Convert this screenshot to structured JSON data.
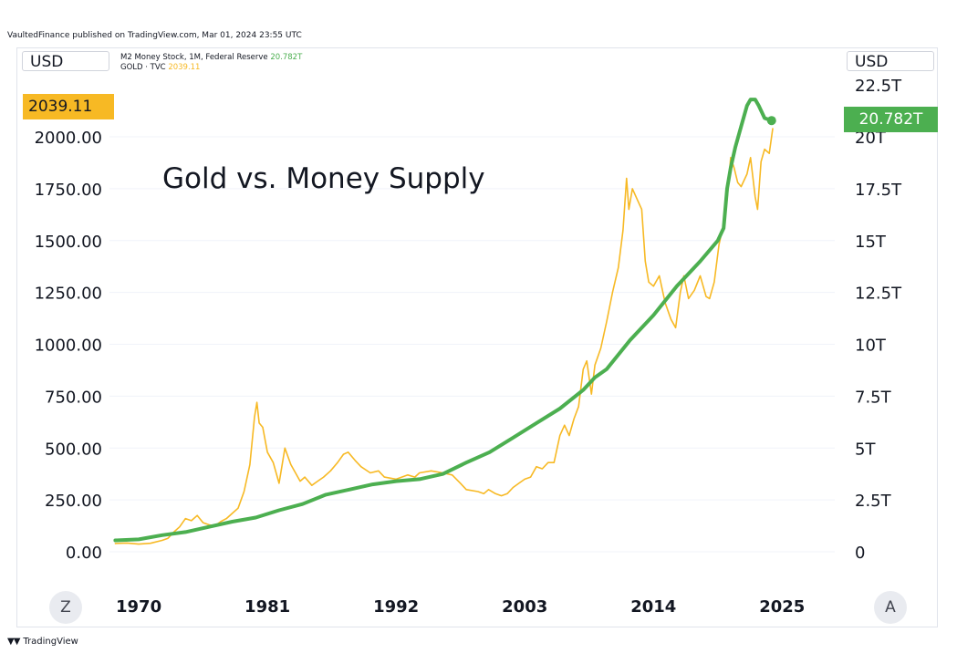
{
  "header": {
    "published": "VaultedFinance published on TradingView.com, Mar 01, 2024 23:55 UTC"
  },
  "left_scale": {
    "currency": "USD"
  },
  "right_scale": {
    "currency": "USD"
  },
  "legend": {
    "m2_label": "M2 Money Stock, 1M, Federal Reserve",
    "m2_value": "20.782T",
    "gold_label": "GOLD · TVC",
    "gold_value": "2039.11"
  },
  "badges": {
    "gold": "2039.11",
    "m2": "20.782T"
  },
  "buttons": {
    "zoom": "Z",
    "auto": "A"
  },
  "footer": {
    "brand": "TradingView"
  },
  "colors": {
    "gold": "#f7b924",
    "m2": "#4caf50",
    "grid": "#f0f3fa"
  },
  "chart_data": {
    "type": "line",
    "annotation": "Gold vs. Money Supply",
    "x_ticks": [
      "1970",
      "1981",
      "1992",
      "2003",
      "2014",
      "2025"
    ],
    "xlim": [
      1967.5,
      2029.5
    ],
    "left_axis": {
      "ticks": [
        "0.00",
        "250.00",
        "500.00",
        "750.00",
        "1000.00",
        "1250.00",
        "1500.00",
        "1750.00",
        "2000.00"
      ],
      "tick_values": [
        0,
        250,
        500,
        750,
        1000,
        1250,
        1500,
        1750,
        2000
      ],
      "ylim": [
        -125,
        2200
      ]
    },
    "right_axis": {
      "ticks": [
        "0",
        "2.5T",
        "5T",
        "7.5T",
        "10T",
        "12.5T",
        "15T",
        "17.5T",
        "20T",
        "22.5T"
      ],
      "tick_values": [
        0,
        2.5,
        5,
        7.5,
        10,
        12.5,
        15,
        17.5,
        20,
        22.5
      ],
      "ylim": [
        -1.25,
        22.5
      ]
    },
    "series": [
      {
        "name": "GOLD · TVC",
        "axis": "left",
        "x": [
          1968.0,
          1969.0,
          1970.0,
          1971.0,
          1972.0,
          1972.5,
          1973.0,
          1973.5,
          1974.0,
          1974.5,
          1975.0,
          1975.5,
          1976.0,
          1976.5,
          1977.0,
          1977.5,
          1978.0,
          1978.5,
          1979.0,
          1979.5,
          1979.9,
          1980.1,
          1980.3,
          1980.6,
          1981.0,
          1981.5,
          1982.0,
          1982.5,
          1983.0,
          1983.4,
          1983.8,
          1984.2,
          1984.8,
          1985.3,
          1985.8,
          1986.4,
          1987.0,
          1987.5,
          1987.9,
          1988.5,
          1989.0,
          1989.8,
          1990.5,
          1991.0,
          1992.0,
          1993.0,
          1993.6,
          1994.0,
          1995.0,
          1996.0,
          1996.8,
          1997.5,
          1998.0,
          1999.0,
          1999.5,
          1999.9,
          2000.5,
          2001.0,
          2001.5,
          2002.0,
          2002.5,
          2003.0,
          2003.5,
          2004.0,
          2004.5,
          2005.0,
          2005.5,
          2006.0,
          2006.4,
          2006.8,
          2007.2,
          2007.6,
          2008.0,
          2008.3,
          2008.7,
          2009.0,
          2009.5,
          2010.0,
          2010.5,
          2011.0,
          2011.4,
          2011.7,
          2011.9,
          2012.2,
          2012.6,
          2013.0,
          2013.3,
          2013.6,
          2014.0,
          2014.5,
          2015.0,
          2015.5,
          2015.9,
          2016.3,
          2016.6,
          2017.0,
          2017.5,
          2018.0,
          2018.5,
          2018.8,
          2019.2,
          2019.6,
          2020.0,
          2020.3,
          2020.6,
          2020.9,
          2021.2,
          2021.5,
          2022.0,
          2022.3,
          2022.7,
          2022.9,
          2023.2,
          2023.5,
          2023.9,
          2024.2
        ],
        "y": [
          40,
          42,
          37,
          41,
          55,
          65,
          95,
          120,
          160,
          150,
          175,
          140,
          130,
          125,
          145,
          160,
          185,
          210,
          290,
          420,
          650,
          720,
          620,
          600,
          480,
          430,
          330,
          500,
          420,
          380,
          340,
          360,
          320,
          340,
          360,
          390,
          430,
          470,
          480,
          440,
          410,
          380,
          390,
          360,
          350,
          370,
          360,
          380,
          390,
          380,
          370,
          330,
          300,
          290,
          280,
          300,
          280,
          270,
          280,
          310,
          330,
          350,
          360,
          410,
          400,
          430,
          430,
          560,
          610,
          560,
          640,
          700,
          880,
          920,
          760,
          900,
          980,
          1110,
          1250,
          1370,
          1550,
          1800,
          1650,
          1750,
          1700,
          1650,
          1400,
          1300,
          1280,
          1330,
          1200,
          1120,
          1080,
          1250,
          1330,
          1220,
          1260,
          1330,
          1230,
          1220,
          1300,
          1480,
          1580,
          1700,
          1900,
          1850,
          1780,
          1760,
          1820,
          1900,
          1710,
          1650,
          1880,
          1940,
          1920,
          2039
        ]
      },
      {
        "name": "M2 Money Stock, 1M, Federal Reserve",
        "axis": "right",
        "x": [
          1968,
          1970,
          1972,
          1974,
          1976,
          1978,
          1980,
          1982,
          1984,
          1986,
          1988,
          1990,
          1992,
          1994,
          1996,
          1998,
          2000,
          2002,
          2004,
          2006,
          2008,
          2009,
          2010,
          2012,
          2014,
          2016,
          2018,
          2019.5,
          2020.0,
          2020.3,
          2020.6,
          2021.0,
          2021.5,
          2022.0,
          2022.3,
          2022.7,
          2023.0,
          2023.5,
          2024.1
        ],
        "y": [
          0.55,
          0.6,
          0.8,
          0.95,
          1.2,
          1.45,
          1.65,
          2.0,
          2.3,
          2.75,
          3.0,
          3.25,
          3.4,
          3.5,
          3.75,
          4.3,
          4.8,
          5.5,
          6.2,
          6.9,
          7.8,
          8.4,
          8.8,
          10.2,
          11.4,
          12.8,
          14.0,
          15.0,
          15.6,
          17.5,
          18.5,
          19.5,
          20.5,
          21.5,
          21.8,
          21.8,
          21.5,
          20.9,
          20.782
        ]
      }
    ],
    "legend": "top-left",
    "grid": true
  }
}
